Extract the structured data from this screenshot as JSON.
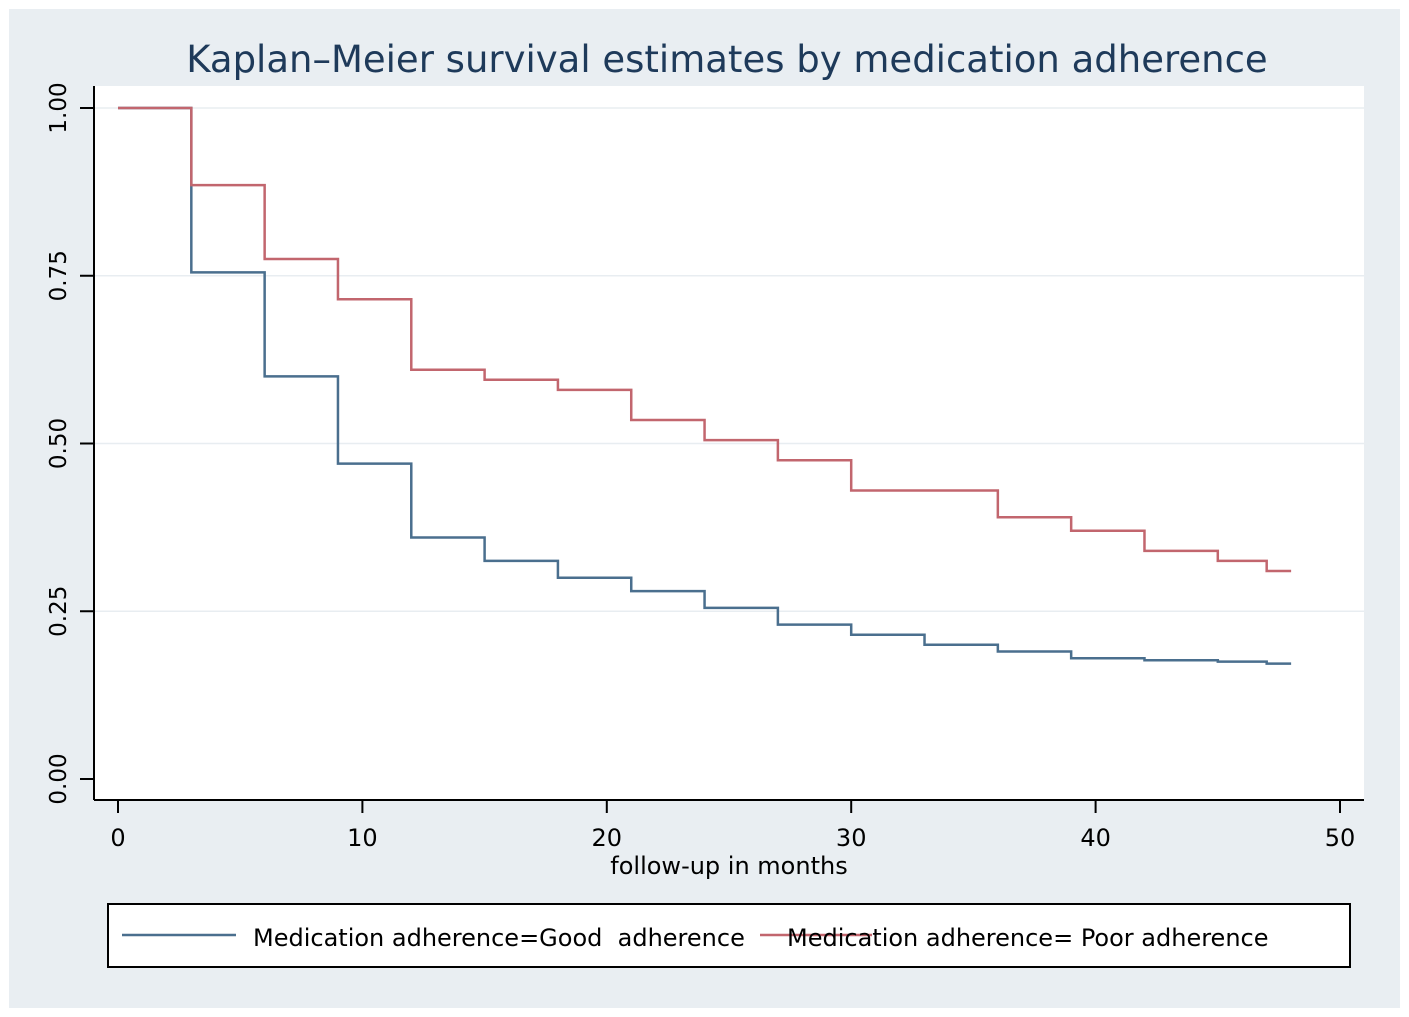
{
  "chart_data": {
    "type": "line",
    "title": "Kaplan–Meier survival estimates by medication adherence",
    "xlabel": "follow-up in months",
    "ylabel": "",
    "xlim": [
      0,
      50
    ],
    "ylim": [
      0,
      1
    ],
    "x_ticks": [
      "0",
      "10",
      "20",
      "30",
      "40",
      "50"
    ],
    "y_ticks": [
      "0.00",
      "0.25",
      "0.50",
      "0.75",
      "1.00"
    ],
    "grid": true,
    "legend_position": "bottom",
    "series": [
      {
        "name": "Medication adherence=Good  adherence",
        "color": "#4a6f8e",
        "x": [
          0,
          3,
          6,
          9,
          12,
          15,
          18,
          21,
          24,
          27,
          30,
          33,
          36,
          39,
          42,
          45,
          47,
          48
        ],
        "y": [
          1.0,
          0.755,
          0.6,
          0.47,
          0.36,
          0.325,
          0.3,
          0.28,
          0.255,
          0.23,
          0.215,
          0.2,
          0.19,
          0.18,
          0.177,
          0.175,
          0.172,
          0.172
        ]
      },
      {
        "name": "Medication adherence= Poor adherence",
        "color": "#c2666e",
        "x": [
          0,
          3,
          6,
          9,
          12,
          15,
          18,
          21,
          24,
          27,
          30,
          33,
          36,
          39,
          42,
          45,
          47,
          48
        ],
        "y": [
          1.0,
          0.885,
          0.775,
          0.715,
          0.61,
          0.595,
          0.58,
          0.535,
          0.505,
          0.475,
          0.43,
          0.43,
          0.39,
          0.37,
          0.34,
          0.325,
          0.31,
          0.31
        ]
      }
    ]
  }
}
